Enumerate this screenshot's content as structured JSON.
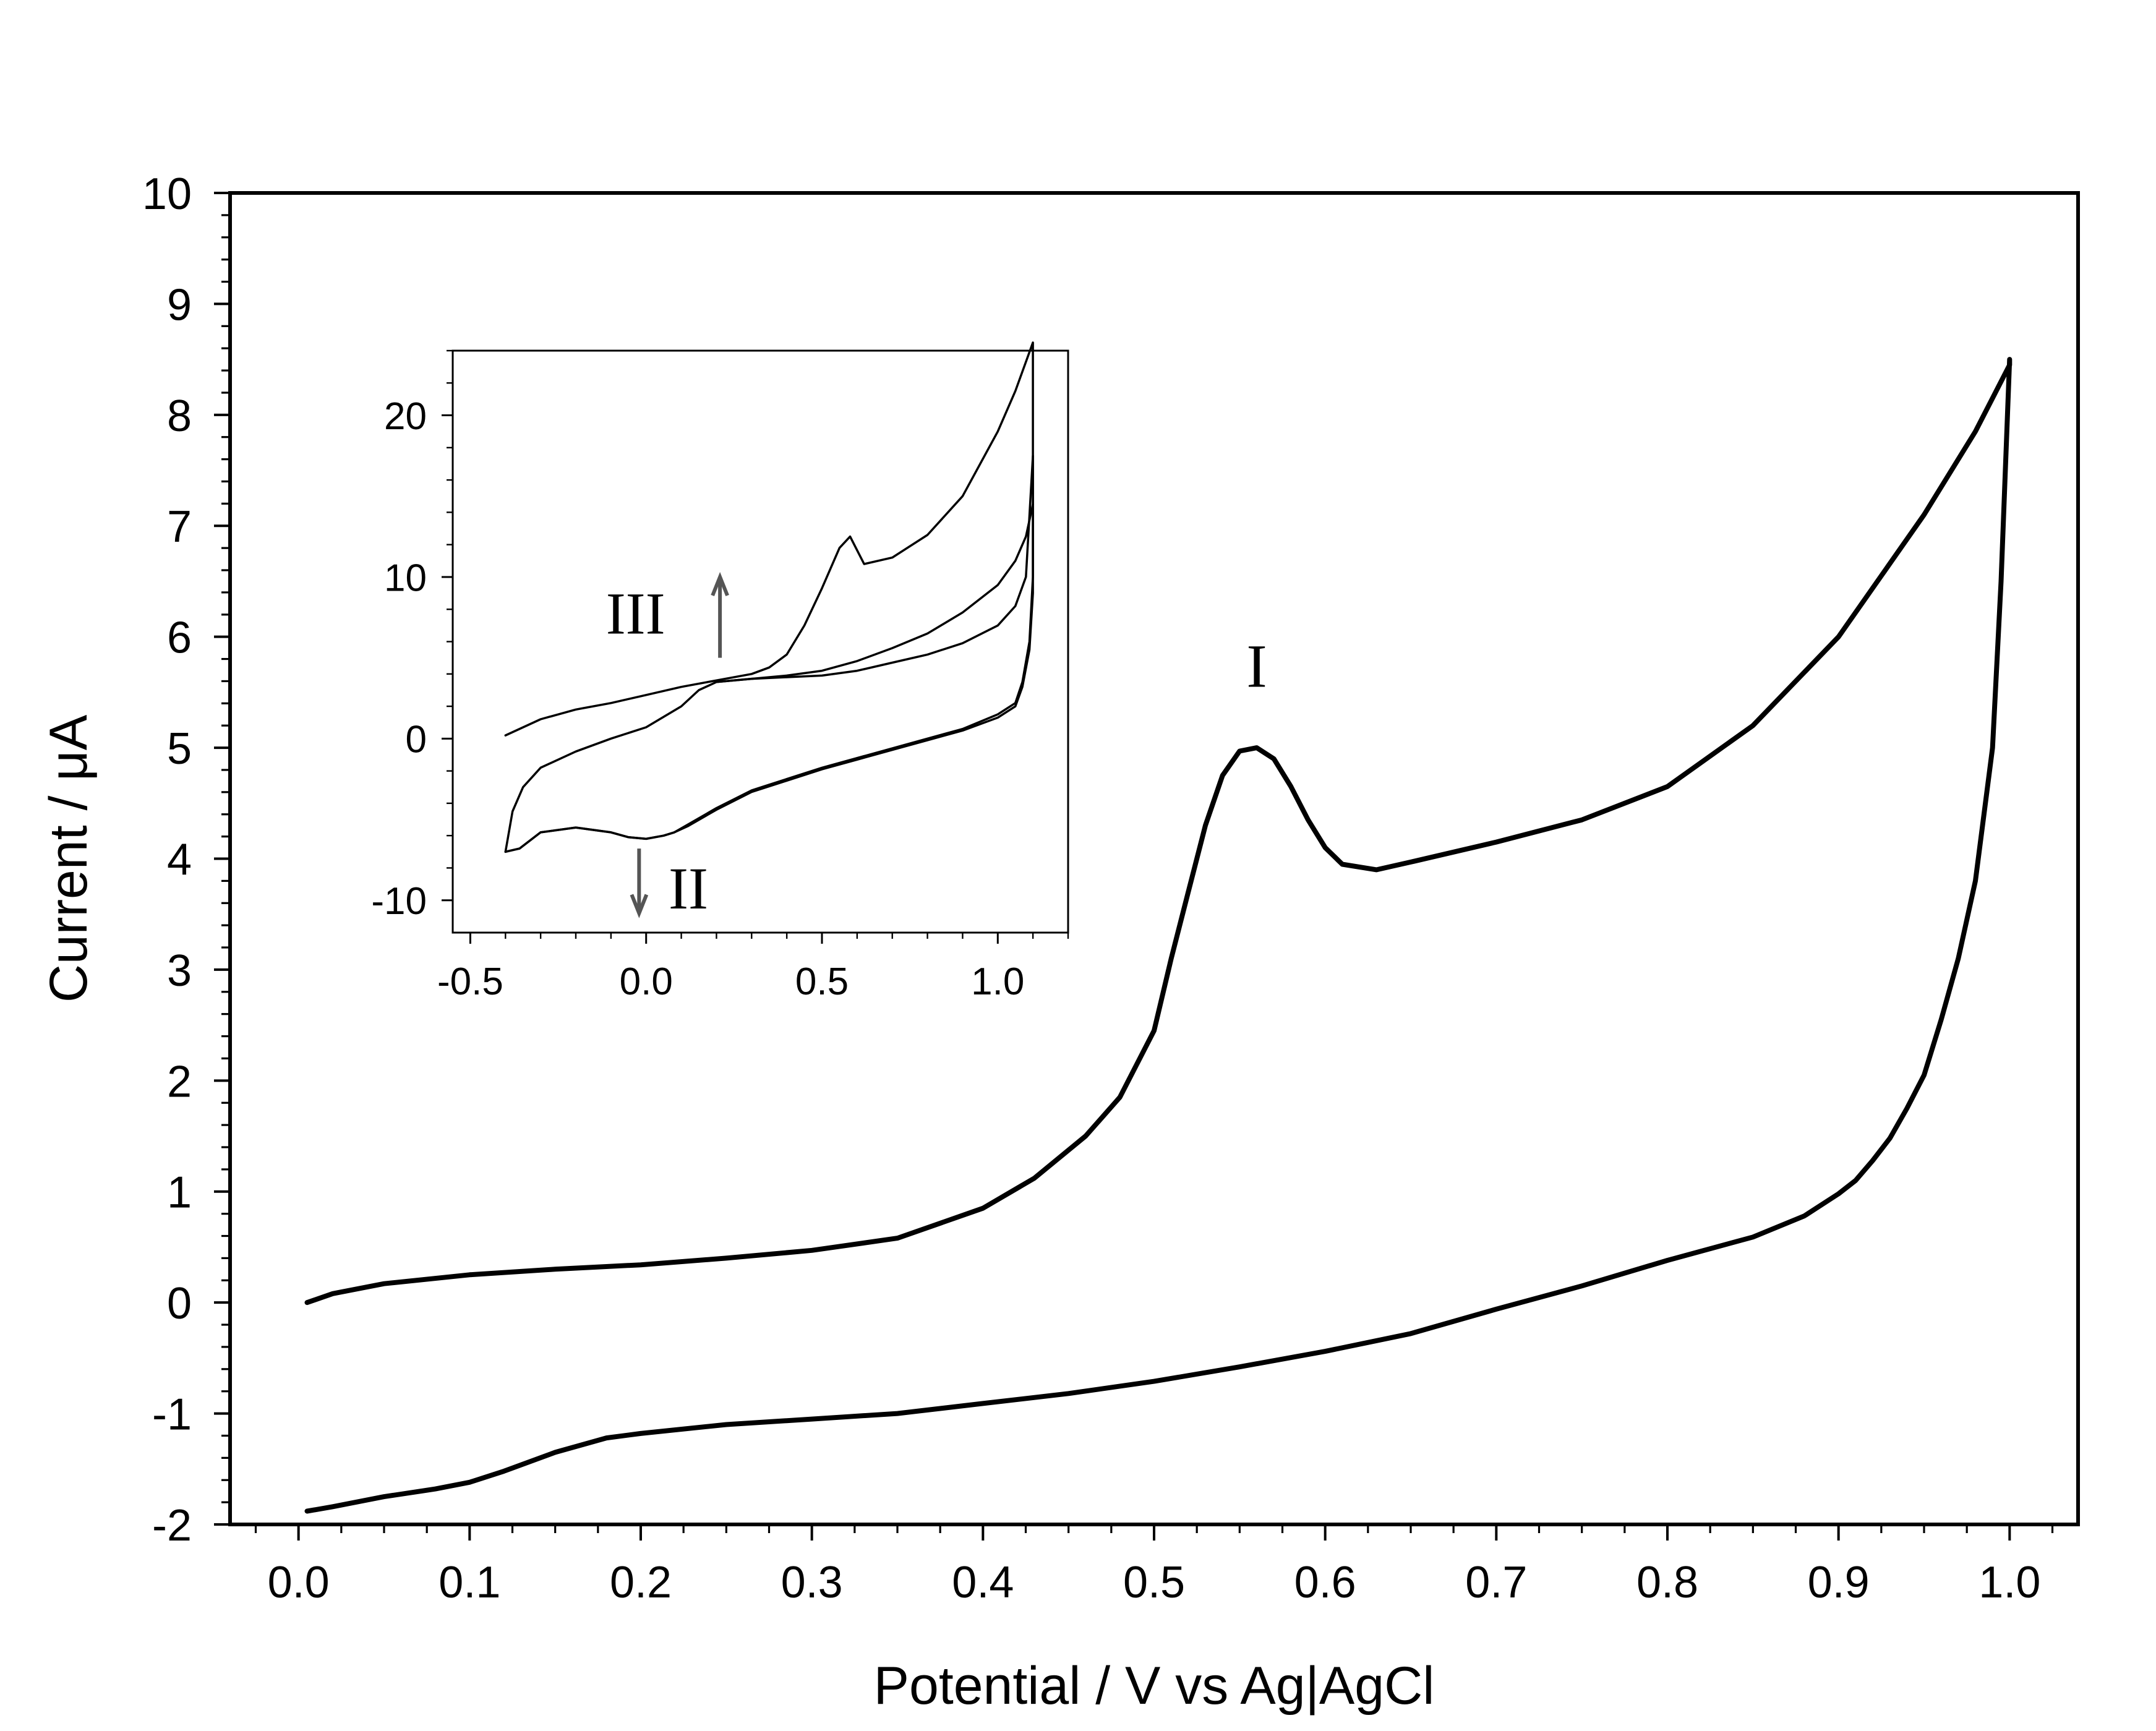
{
  "chart_data": [
    {
      "type": "line",
      "xlabel": "Potential / V vs Ag|AgCl",
      "ylabel": "Current / μA",
      "xlim": [
        -0.04,
        1.04
      ],
      "ylim": [
        -2,
        10
      ],
      "xticks": [
        "0.0",
        "0.1",
        "0.2",
        "0.3",
        "0.4",
        "0.5",
        "0.6",
        "0.7",
        "0.8",
        "0.9",
        "1.0"
      ],
      "yticks": [
        "-2",
        "-1",
        "0",
        "1",
        "2",
        "3",
        "4",
        "5",
        "6",
        "7",
        "8",
        "9",
        "10"
      ],
      "grid": false,
      "annotations": [
        "I"
      ],
      "series": [
        {
          "x": [
            0.005,
            0.02,
            0.05,
            0.1,
            0.15,
            0.2,
            0.25,
            0.3,
            0.35,
            0.4,
            0.43,
            0.46,
            0.48,
            0.5,
            0.51,
            0.52,
            0.53,
            0.54,
            0.55,
            0.56,
            0.57,
            0.58,
            0.59,
            0.6,
            0.61,
            0.63,
            0.65,
            0.7,
            0.75,
            0.8,
            0.85,
            0.9,
            0.95,
            0.98,
            1.0,
            1.0,
            0.995,
            0.99,
            0.98,
            0.97,
            0.96,
            0.95,
            0.94,
            0.93,
            0.92,
            0.91,
            0.9,
            0.88,
            0.85,
            0.8,
            0.75,
            0.7,
            0.65,
            0.6,
            0.55,
            0.5,
            0.45,
            0.4,
            0.35,
            0.3,
            0.25,
            0.2,
            0.18,
            0.15,
            0.12,
            0.1,
            0.08,
            0.05,
            0.02,
            0.005
          ],
          "y": [
            0.0,
            0.08,
            0.17,
            0.25,
            0.3,
            0.34,
            0.4,
            0.47,
            0.58,
            0.85,
            1.12,
            1.5,
            1.85,
            2.45,
            3.1,
            3.7,
            4.3,
            4.75,
            4.97,
            5.0,
            4.9,
            4.65,
            4.35,
            4.1,
            3.95,
            3.9,
            3.97,
            4.15,
            4.35,
            4.65,
            5.2,
            6.0,
            7.1,
            7.85,
            8.45,
            8.5,
            6.5,
            5.0,
            3.8,
            3.1,
            2.55,
            2.05,
            1.75,
            1.48,
            1.28,
            1.1,
            0.98,
            0.78,
            0.59,
            0.38,
            0.15,
            -0.06,
            -0.28,
            -0.44,
            -0.58,
            -0.71,
            -0.82,
            -0.91,
            -1.0,
            -1.05,
            -1.1,
            -1.18,
            -1.22,
            -1.35,
            -1.52,
            -1.62,
            -1.68,
            -1.75,
            -1.84,
            -1.88
          ]
        }
      ]
    },
    {
      "type": "line",
      "xlim": [
        -0.55,
        1.2
      ],
      "ylim": [
        -12,
        24
      ],
      "xticks": [
        "-0.5",
        "0.0",
        "0.5",
        "1.0"
      ],
      "yticks": [
        "-10",
        "0",
        "10",
        "20"
      ],
      "grid": false,
      "annotations": [
        "III",
        "II"
      ],
      "series": [
        {
          "x": [
            -0.4,
            -0.3,
            -0.2,
            -0.1,
            0.0,
            0.1,
            0.2,
            0.3,
            0.35,
            0.4,
            0.45,
            0.5,
            0.55,
            0.58,
            0.62,
            0.7,
            0.8,
            0.9,
            1.0,
            1.05,
            1.1,
            1.1,
            1.09,
            1.07,
            1.05,
            1.0,
            0.9,
            0.8,
            0.7,
            0.6,
            0.5,
            0.4,
            0.3,
            0.2,
            0.12,
            0.08,
            0.05,
            0.0,
            -0.05,
            -0.1,
            -0.2,
            -0.3,
            -0.36,
            -0.4
          ],
          "y": [
            0.2,
            1.2,
            1.8,
            2.2,
            2.7,
            3.2,
            3.6,
            4.0,
            4.4,
            5.2,
            7.0,
            9.3,
            11.8,
            12.5,
            10.8,
            11.2,
            12.6,
            15.0,
            19.0,
            21.5,
            24.5,
            10.0,
            6.0,
            3.5,
            2.2,
            1.5,
            0.6,
            0.0,
            -0.6,
            -1.2,
            -1.8,
            -2.5,
            -3.2,
            -4.3,
            -5.3,
            -5.8,
            -6.0,
            -6.2,
            -6.1,
            -5.8,
            -5.5,
            -5.8,
            -6.8,
            -7.0
          ]
        },
        {
          "x": [
            -0.4,
            -0.38,
            -0.35,
            -0.3,
            -0.2,
            -0.1,
            0.0,
            0.1,
            0.15,
            0.2,
            0.3,
            0.4,
            0.5,
            0.6,
            0.7,
            0.8,
            0.9,
            1.0,
            1.05,
            1.08,
            1.1,
            1.1,
            1.09,
            1.07,
            1.05,
            1.0,
            0.9,
            0.8,
            0.7,
            0.6,
            0.5,
            0.4,
            0.3,
            0.2,
            0.12,
            0.08,
            0.05,
            0.0,
            -0.05,
            -0.1,
            -0.2,
            -0.3,
            -0.36,
            -0.4
          ],
          "y": [
            -7.0,
            -4.5,
            -3.0,
            -1.8,
            -0.8,
            0.0,
            0.7,
            2.0,
            3.0,
            3.5,
            3.7,
            3.8,
            3.9,
            4.2,
            4.7,
            5.2,
            5.9,
            7.0,
            8.2,
            10.0,
            17.5,
            9.0,
            5.5,
            3.2,
            2.0,
            1.3,
            0.5,
            -0.1,
            -0.7,
            -1.3,
            -1.9,
            -2.6,
            -3.3,
            -4.4,
            -5.4,
            -5.8,
            -6.0,
            -6.2,
            -6.1,
            -5.8,
            -5.5,
            -5.8,
            -6.8,
            -7.0
          ]
        },
        {
          "x": [
            0.2,
            0.3,
            0.4,
            0.5,
            0.6,
            0.7,
            0.8,
            0.9,
            1.0,
            1.05,
            1.08,
            1.1
          ],
          "y": [
            3.5,
            3.7,
            3.9,
            4.2,
            4.8,
            5.6,
            6.5,
            7.8,
            9.5,
            11.0,
            12.5,
            14.5
          ]
        }
      ]
    }
  ]
}
